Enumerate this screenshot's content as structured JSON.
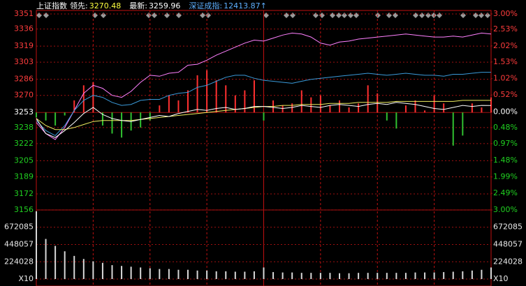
{
  "chart_data": {
    "type": "line",
    "title": "上证指数",
    "info": [
      {
        "label": "领先:",
        "value": 3270.48,
        "color": "#ffff40"
      },
      {
        "label": "最新:",
        "value": 3259.96,
        "color": "#ffffff"
      },
      {
        "label": "深证成指:",
        "value": "12413.87↑",
        "color": "#5fb0ff"
      }
    ],
    "x": [
      0,
      5,
      10,
      15,
      20,
      25,
      30,
      35,
      40,
      45,
      50,
      55,
      60,
      65,
      70,
      75,
      80,
      85,
      90,
      95,
      100,
      105,
      110,
      115,
      120,
      125,
      130,
      135,
      140,
      145,
      150,
      155,
      160,
      165,
      170,
      175,
      180,
      185,
      190,
      195,
      200,
      205,
      210,
      215,
      220,
      225,
      230,
      235,
      240
    ],
    "xlim": [
      0,
      240
    ],
    "ylim": [
      3156,
      3351
    ],
    "yticks": [
      3156,
      3172,
      3189,
      3205,
      3222,
      3238,
      3253,
      3270,
      3286,
      3303,
      3319,
      3336,
      3351
    ],
    "baseline": 3253,
    "y2lim": [
      -3,
      3
    ],
    "y2ticks": [
      {
        "value": -3,
        "label": "3.00%"
      },
      {
        "value": -2.49,
        "label": "2.49%"
      },
      {
        "value": -1.99,
        "label": "1.99%"
      },
      {
        "value": -1.48,
        "label": "1.48%"
      },
      {
        "value": -0.97,
        "label": "0.97%"
      },
      {
        "value": -0.48,
        "label": "0.48%"
      },
      {
        "value": 0,
        "label": "0.00%"
      },
      {
        "value": 0.52,
        "label": "0.52%"
      },
      {
        "value": 1.02,
        "label": "1.02%"
      },
      {
        "value": 1.53,
        "label": "1.53%"
      },
      {
        "value": 2.02,
        "label": "2.02%"
      },
      {
        "value": 2.53,
        "label": "2.53%"
      },
      {
        "value": 3,
        "label": "3.00%"
      }
    ],
    "grid": true,
    "bars": {
      "up_color": "#ff3030",
      "down_color": "#30c030",
      "values": [
        3248,
        3245,
        3240,
        3250,
        3265,
        3280,
        3283,
        3240,
        3232,
        3228,
        3235,
        3238,
        3245,
        3260,
        3270,
        3265,
        3275,
        3290,
        3295,
        3285,
        3280,
        3270,
        3275,
        3285,
        3245,
        3265,
        3260,
        3262,
        3275,
        3268,
        3270,
        3260,
        3265,
        3258,
        3262,
        3280,
        3272,
        3245,
        3237,
        3260,
        3265,
        3255,
        3270,
        3262,
        3220,
        3230,
        3262,
        3258,
        3268
      ]
    },
    "series": [
      {
        "color": "#ff80ff",
        "values": [
          3243,
          3232,
          3226,
          3238,
          3255,
          3272,
          3280,
          3277,
          3270,
          3268,
          3274,
          3283,
          3290,
          3289,
          3292,
          3293,
          3300,
          3301,
          3305,
          3310,
          3314,
          3318,
          3322,
          3325,
          3324,
          3327,
          3330,
          3332,
          3331,
          3328,
          3322,
          3320,
          3323,
          3324,
          3326,
          3327,
          3328,
          3329,
          3330,
          3331,
          3330,
          3329,
          3328,
          3328,
          3329,
          3328,
          3330,
          3332,
          3331
        ]
      },
      {
        "color": "#3a9ad9",
        "values": [
          3245,
          3235,
          3230,
          3240,
          3255,
          3265,
          3270,
          3268,
          3263,
          3260,
          3261,
          3265,
          3266,
          3266,
          3270,
          3272,
          3273,
          3278,
          3280,
          3284,
          3288,
          3290,
          3290,
          3287,
          3285,
          3284,
          3283,
          3282,
          3284,
          3286,
          3287,
          3288,
          3289,
          3290,
          3291,
          3292,
          3291,
          3290,
          3291,
          3292,
          3291,
          3290,
          3290,
          3289,
          3291,
          3291,
          3292,
          3293,
          3293
        ]
      },
      {
        "color": "#f0f060",
        "values": [
          3247,
          3240,
          3236,
          3236,
          3238,
          3241,
          3244,
          3245,
          3245,
          3245,
          3245,
          3246,
          3247,
          3248,
          3249,
          3250,
          3251,
          3252,
          3253,
          3254,
          3255,
          3256,
          3257,
          3258,
          3259,
          3259,
          3260,
          3260,
          3261,
          3261,
          3261,
          3262,
          3262,
          3262,
          3263,
          3263,
          3263,
          3263,
          3264,
          3264,
          3264,
          3264,
          3264,
          3264,
          3264,
          3265,
          3265,
          3265,
          3265
        ]
      },
      {
        "color": "#ffffff",
        "values": [
          3247,
          3232,
          3228,
          3235,
          3243,
          3252,
          3258,
          3251,
          3247,
          3245,
          3244,
          3246,
          3248,
          3250,
          3249,
          3252,
          3254,
          3256,
          3255,
          3257,
          3258,
          3256,
          3257,
          3259,
          3259,
          3258,
          3257,
          3258,
          3260,
          3259,
          3258,
          3260,
          3261,
          3260,
          3259,
          3261,
          3262,
          3261,
          3263,
          3262,
          3261,
          3259,
          3257,
          3256,
          3258,
          3260,
          3259,
          3260,
          3259.96
        ]
      }
    ],
    "volume": {
      "color": "#d8d8d8",
      "ylim": [
        0,
        896113
      ],
      "yticks": [
        {
          "value": 0,
          "label": "X10"
        },
        224028,
        448057,
        672085
      ],
      "values": [
        880000,
        520000,
        430000,
        360000,
        300000,
        260000,
        230000,
        210000,
        180000,
        170000,
        160000,
        150000,
        140000,
        130000,
        130000,
        120000,
        120000,
        110000,
        110000,
        100000,
        100000,
        95000,
        95000,
        100000,
        150000,
        90000,
        85000,
        85000,
        80000,
        80000,
        80000,
        80000,
        75000,
        75000,
        80000,
        80000,
        80000,
        80000,
        80000,
        80000,
        85000,
        85000,
        85000,
        90000,
        95000,
        100000,
        110000,
        120000,
        150000
      ]
    }
  }
}
